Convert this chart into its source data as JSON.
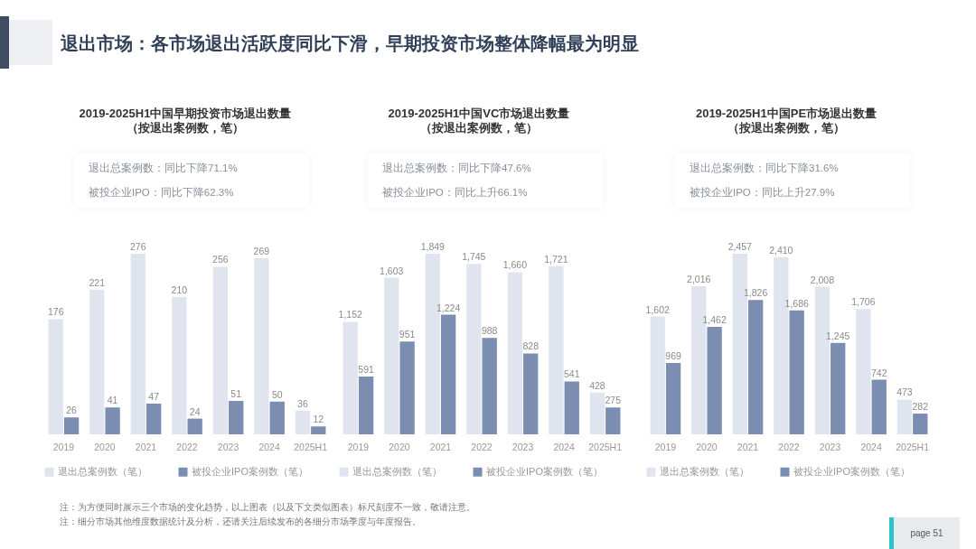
{
  "chart_data": [
    {
      "type": "other",
      "title": "退出市场：各市场退出活跃度同比下滑，早期投资市场整体降幅最为明显"
    },
    {
      "type": "bar",
      "title": "2019-2025H1中国早期投资市场退出数量",
      "subtitle": "（按退出案例数，笔）",
      "annotations": [
        "退出总案例数：同比下降71.1%",
        "被投企业IPO：同比下降62.3%"
      ],
      "categories": [
        "2019",
        "2020",
        "2021",
        "2022",
        "2023",
        "2024",
        "2025H1"
      ],
      "series": [
        {
          "name": "退出总案例数（笔）",
          "color": "#dfe4ee",
          "values": [
            176,
            221,
            276,
            210,
            256,
            269,
            36
          ]
        },
        {
          "name": "被投企业IPO案例数（笔）",
          "color": "#7b8db0",
          "values": [
            26,
            41,
            47,
            24,
            51,
            50,
            12
          ]
        }
      ],
      "data_labels": true,
      "legend": "bottom"
    },
    {
      "type": "bar",
      "title": "2019-2025H1中国VC市场退出数量",
      "subtitle": "（按退出案例数，笔）",
      "annotations": [
        "退出总案例数：同比下降47.6%",
        "被投企业IPO：同比上升66.1%"
      ],
      "categories": [
        "2019",
        "2020",
        "2021",
        "2022",
        "2023",
        "2024",
        "2025H1"
      ],
      "series": [
        {
          "name": "退出总案例数（笔）",
          "color": "#dfe4ee",
          "values": [
            1152,
            1603,
            1849,
            1745,
            1660,
            1721,
            428
          ],
          "value_labels": [
            "1,152",
            "1,603",
            "1,849",
            "1,745",
            "1,660",
            "1,721",
            "428"
          ]
        },
        {
          "name": "被投企业IPO案例数（笔）",
          "color": "#7b8db0",
          "values": [
            591,
            951,
            1224,
            988,
            828,
            541,
            275
          ],
          "value_labels": [
            "591",
            "951",
            "1,224",
            "988",
            "828",
            "541",
            "275"
          ]
        }
      ],
      "legend": "bottom"
    },
    {
      "type": "bar",
      "title": "2019-2025H1中国PE市场退出数量",
      "subtitle": "（按退出案例数，笔）",
      "annotations": [
        "退出总案例数：同比下降31.6%",
        "被投企业IPO：同比上升27.9%"
      ],
      "categories": [
        "2019",
        "2020",
        "2021",
        "2022",
        "2023",
        "2024",
        "2025H1"
      ],
      "series": [
        {
          "name": "退出总案例数（笔）",
          "color": "#dfe4ee",
          "values": [
            1602,
            2016,
            2457,
            2410,
            2008,
            1706,
            473
          ],
          "value_labels": [
            "1,602",
            "2,016",
            "2,457",
            "2,410",
            "2,008",
            "1,706",
            "473"
          ]
        },
        {
          "name": "被投企业IPO案例数（笔）",
          "color": "#7b8db0",
          "values": [
            969,
            1462,
            1826,
            1686,
            1245,
            742,
            282
          ],
          "value_labels": [
            "969",
            "1,462",
            "1,826",
            "1,686",
            "1,245",
            "742",
            "282"
          ]
        }
      ],
      "legend": "bottom"
    },
    {
      "type": "other",
      "annotations": [
        "注：为方便同时展示三个市场的变化趋势，以上图表（以及下文类似图表）标尺刻度不一致，敬请注意。",
        "注：细分市场其他维度数据统计及分析，还请关注后续发布的各细分市场季度与年度报告。"
      ]
    },
    {
      "type": "other",
      "annotations": [
        "page 51"
      ]
    }
  ]
}
